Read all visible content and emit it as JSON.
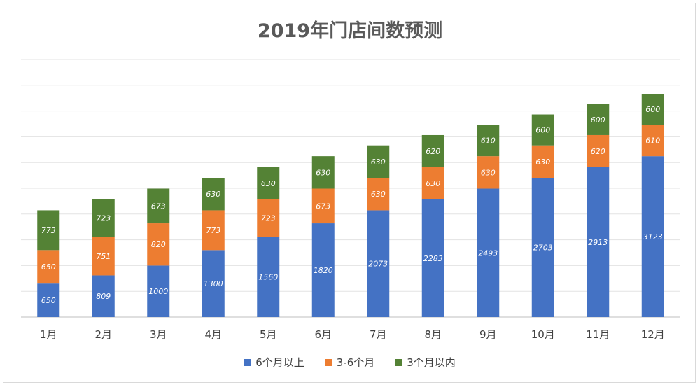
{
  "chart_data": {
    "type": "bar",
    "stacked": true,
    "title": "2019年门店间数预测",
    "categories": [
      "1月",
      "2月",
      "3月",
      "4月",
      "5月",
      "6月",
      "7月",
      "8月",
      "9月",
      "10月",
      "11月",
      "12月"
    ],
    "series": [
      {
        "name": "6个月以上",
        "color": "#4472c4",
        "values": [
          650,
          809,
          1000,
          1300,
          1560,
          1820,
          2073,
          2283,
          2493,
          2703,
          2913,
          3123
        ]
      },
      {
        "name": "3-6个月",
        "color": "#ed7d31",
        "values": [
          650,
          751,
          820,
          773,
          723,
          673,
          630,
          630,
          630,
          630,
          620,
          610
        ]
      },
      {
        "name": "3个月以内",
        "color": "#548235",
        "values": [
          773,
          723,
          673,
          630,
          630,
          630,
          630,
          620,
          610,
          600,
          600,
          600
        ]
      }
    ],
    "xlabel": "",
    "ylabel": "",
    "ylim": [
      0,
      5000
    ],
    "gridlines": true,
    "legend_position": "bottom"
  }
}
